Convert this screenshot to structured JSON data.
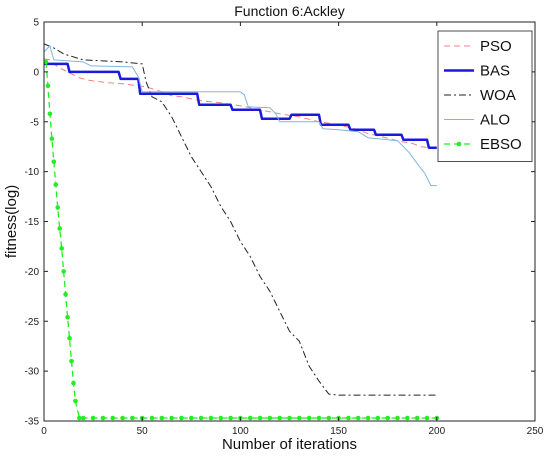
{
  "chart_data": {
    "type": "line",
    "title": "Function 6:Ackley",
    "xlabel": "Number of iterations",
    "ylabel": "fitness(log)",
    "xlim": [
      0,
      250
    ],
    "ylim": [
      -35,
      5
    ],
    "xticks": [
      0,
      50,
      100,
      150,
      200,
      250
    ],
    "yticks": [
      5,
      0,
      -5,
      -10,
      -15,
      -20,
      -25,
      -30,
      -35
    ],
    "grid": false,
    "legend_position": "top-right",
    "series": [
      {
        "name": "PSO",
        "color": "#f08080",
        "dash": "dashed",
        "x": [
          0,
          3,
          7,
          12,
          18,
          22,
          25,
          33,
          40,
          52,
          60,
          65,
          70,
          80,
          90,
          100,
          110,
          120,
          130,
          140,
          150,
          160,
          165,
          170,
          180,
          188,
          192,
          200
        ],
        "y": [
          1.3,
          1.2,
          0.5,
          0.0,
          -0.6,
          -0.8,
          -0.9,
          -1.1,
          -1.2,
          -1.5,
          -2.0,
          -2.4,
          -2.5,
          -2.9,
          -3.1,
          -3.4,
          -3.8,
          -4.2,
          -4.5,
          -5.0,
          -5.3,
          -5.8,
          -6.2,
          -6.4,
          -6.9,
          -7.2,
          -7.5,
          -7.7
        ]
      },
      {
        "name": "BAS",
        "color": "#1a1adc",
        "dash": "solid",
        "x": [
          0,
          12,
          13,
          38,
          39,
          48,
          49,
          78,
          79,
          95,
          96,
          110,
          111,
          125,
          126,
          140,
          141,
          155,
          156,
          168,
          169,
          182,
          183,
          195,
          196,
          200
        ],
        "y": [
          0.8,
          0.8,
          0.0,
          0.0,
          -0.7,
          -0.7,
          -2.2,
          -2.2,
          -3.3,
          -3.3,
          -3.8,
          -3.8,
          -4.7,
          -4.7,
          -4.3,
          -4.3,
          -5.3,
          -5.3,
          -5.8,
          -5.8,
          -6.3,
          -6.3,
          -6.8,
          -6.8,
          -7.6,
          -7.6
        ]
      },
      {
        "name": "WOA",
        "color": "#222222",
        "dash": "dashdot",
        "x": [
          0,
          5,
          10,
          20,
          30,
          40,
          50,
          52,
          55,
          60,
          65,
          70,
          75,
          80,
          85,
          90,
          95,
          100,
          105,
          110,
          115,
          120,
          125,
          130,
          135,
          140,
          145,
          150,
          160,
          170,
          180,
          190,
          200
        ],
        "y": [
          2.8,
          2.4,
          1.8,
          1.2,
          1.1,
          1.0,
          0.8,
          -1.0,
          -2.5,
          -3.0,
          -4.5,
          -6.5,
          -8.5,
          -10.0,
          -11.5,
          -13.5,
          -15.0,
          -17.0,
          -18.5,
          -20.5,
          -22.0,
          -24.0,
          -26.0,
          -27.0,
          -29.5,
          -31.0,
          -32.3,
          -32.4,
          -32.4,
          -32.4,
          -32.4,
          -32.4,
          -32.4
        ]
      },
      {
        "name": "ALO",
        "color": "#7fb7e0",
        "dash": "solid",
        "x": [
          0,
          3,
          5,
          20,
          22,
          24,
          45,
          48,
          50,
          100,
          102,
          104,
          115,
          118,
          120,
          140,
          142,
          150,
          160,
          165,
          175,
          180,
          186,
          190,
          194,
          197,
          200
        ],
        "y": [
          2.0,
          2.6,
          1.2,
          1.0,
          0.8,
          0.6,
          0.5,
          -0.5,
          -2.0,
          -2.0,
          -2.3,
          -3.5,
          -3.6,
          -4.2,
          -5.0,
          -5.0,
          -5.7,
          -5.8,
          -6.0,
          -6.6,
          -6.8,
          -6.9,
          -8.1,
          -9.2,
          -10.2,
          -11.4,
          -11.4
        ]
      },
      {
        "name": "EBSO",
        "color": "#22ee22",
        "dash": "dashed",
        "markers": true,
        "x": [
          1,
          2,
          3,
          4,
          5,
          6,
          7,
          8,
          9,
          10,
          11,
          12,
          13,
          14,
          15,
          16,
          18,
          20,
          25,
          30,
          35,
          40,
          45,
          50,
          55,
          60,
          65,
          70,
          75,
          80,
          85,
          90,
          95,
          100,
          105,
          110,
          115,
          120,
          125,
          130,
          135,
          140,
          145,
          150,
          155,
          160,
          165,
          170,
          175,
          180,
          185,
          190,
          195,
          200
        ],
        "y": [
          1.0,
          -1.4,
          -4.2,
          -6.7,
          -9.0,
          -11.3,
          -13.6,
          -15.7,
          -17.7,
          -20.0,
          -22.3,
          -24.6,
          -26.7,
          -29.0,
          -31.2,
          -33.0,
          -34.7,
          -34.7,
          -34.7,
          -34.7,
          -34.7,
          -34.7,
          -34.7,
          -34.7,
          -34.7,
          -34.7,
          -34.7,
          -34.7,
          -34.7,
          -34.7,
          -34.7,
          -34.7,
          -34.7,
          -34.7,
          -34.7,
          -34.7,
          -34.7,
          -34.7,
          -34.7,
          -34.7,
          -34.7,
          -34.7,
          -34.7,
          -34.7,
          -34.7,
          -34.7,
          -34.7,
          -34.7,
          -34.7,
          -34.7,
          -34.7,
          -34.7,
          -34.7,
          -34.7
        ]
      }
    ]
  }
}
